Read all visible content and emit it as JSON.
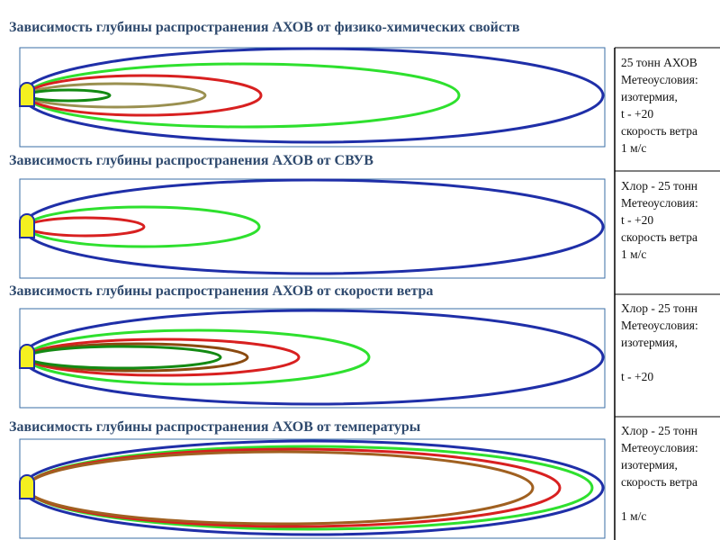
{
  "panels": [
    {
      "title": "Зависимость глубины распространения АХОВ от физико-химических свойств",
      "notes": [
        "25 тонн АХОВ",
        "Метеоусловия:",
        "изотермия,",
        "t -  +20",
        "скорость ветра",
        "1 м/с"
      ]
    },
    {
      "title": "Зависимость глубины распространения АХОВ от СВУВ",
      "notes": [
        "Хлор - 25 тонн",
        "Метеоусловия:",
        "t -  +20",
        "скорость ветра",
        "1 м/с"
      ]
    },
    {
      "title": "Зависимость глубины распространения АХОВ от скорости ветра",
      "notes": [
        "Хлор - 25 тонн",
        "Метеоусловия:",
        "изотермия,",
        "t -  +20"
      ]
    },
    {
      "title": "Зависимость глубины распространения АХОВ от температуры",
      "notes": [
        "Хлор - 25 тонн",
        "Метеоусловия:",
        "изотермия,",
        "скорость ветра",
        "1 м/с"
      ]
    }
  ]
}
